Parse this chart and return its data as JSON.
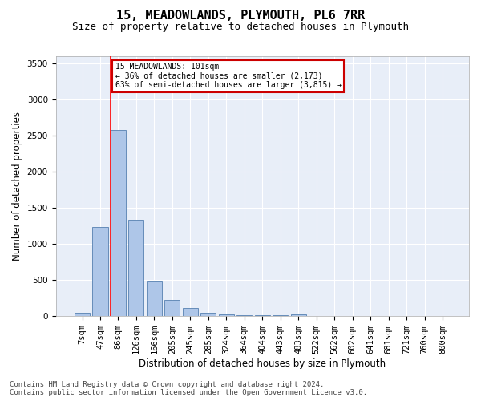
{
  "title": "15, MEADOWLANDS, PLYMOUTH, PL6 7RR",
  "subtitle": "Size of property relative to detached houses in Plymouth",
  "xlabel": "Distribution of detached houses by size in Plymouth",
  "ylabel": "Number of detached properties",
  "categories": [
    "7sqm",
    "47sqm",
    "86sqm",
    "126sqm",
    "166sqm",
    "205sqm",
    "245sqm",
    "285sqm",
    "324sqm",
    "364sqm",
    "404sqm",
    "443sqm",
    "483sqm",
    "522sqm",
    "562sqm",
    "602sqm",
    "641sqm",
    "681sqm",
    "721sqm",
    "760sqm",
    "800sqm"
  ],
  "values": [
    50,
    1240,
    2580,
    1340,
    495,
    230,
    115,
    50,
    28,
    15,
    10,
    10,
    25,
    0,
    0,
    0,
    0,
    0,
    0,
    0,
    0
  ],
  "bar_color": "#aec6e8",
  "bar_edge_color": "#5580b0",
  "red_line_index": 2,
  "annotation_text": "15 MEADOWLANDS: 101sqm\n← 36% of detached houses are smaller (2,173)\n63% of semi-detached houses are larger (3,815) →",
  "annotation_box_color": "#ffffff",
  "annotation_box_edge_color": "#cc0000",
  "ylim": [
    0,
    3600
  ],
  "yticks": [
    0,
    500,
    1000,
    1500,
    2000,
    2500,
    3000,
    3500
  ],
  "background_color": "#e8eef8",
  "grid_color": "#ffffff",
  "footer_line1": "Contains HM Land Registry data © Crown copyright and database right 2024.",
  "footer_line2": "Contains public sector information licensed under the Open Government Licence v3.0.",
  "title_fontsize": 11,
  "subtitle_fontsize": 9,
  "xlabel_fontsize": 8.5,
  "ylabel_fontsize": 8.5,
  "footer_fontsize": 6.5,
  "tick_fontsize": 7.5
}
